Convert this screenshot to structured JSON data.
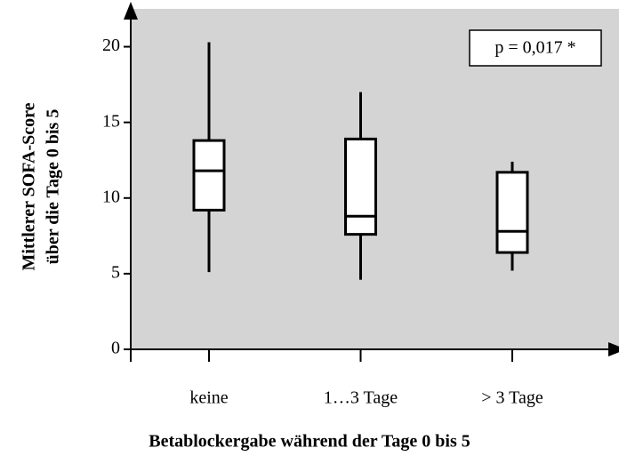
{
  "chart_data": {
    "type": "box",
    "ylabel": [
      "Mittlerer SOFA-Score",
      "über die Tage 0 bis 5"
    ],
    "xlabel": "Betablockergabe während der Tage 0 bis 5",
    "annotation": "p = 0,017 *",
    "categories": [
      "keine",
      "1…3 Tage",
      "> 3 Tage"
    ],
    "boxes": [
      {
        "min": 5.1,
        "q1": 9.2,
        "median": 11.8,
        "q3": 13.8,
        "max": 20.3
      },
      {
        "min": 4.6,
        "q1": 7.6,
        "median": 8.8,
        "q3": 13.9,
        "max": 17.0
      },
      {
        "min": 5.2,
        "q1": 6.4,
        "median": 7.8,
        "q3": 11.7,
        "max": 12.4
      }
    ],
    "color": "#ffffff",
    "background": "#d4d4d4",
    "ylim": [
      0,
      22.5
    ],
    "yticks": [
      0,
      5,
      10,
      15,
      20
    ]
  }
}
